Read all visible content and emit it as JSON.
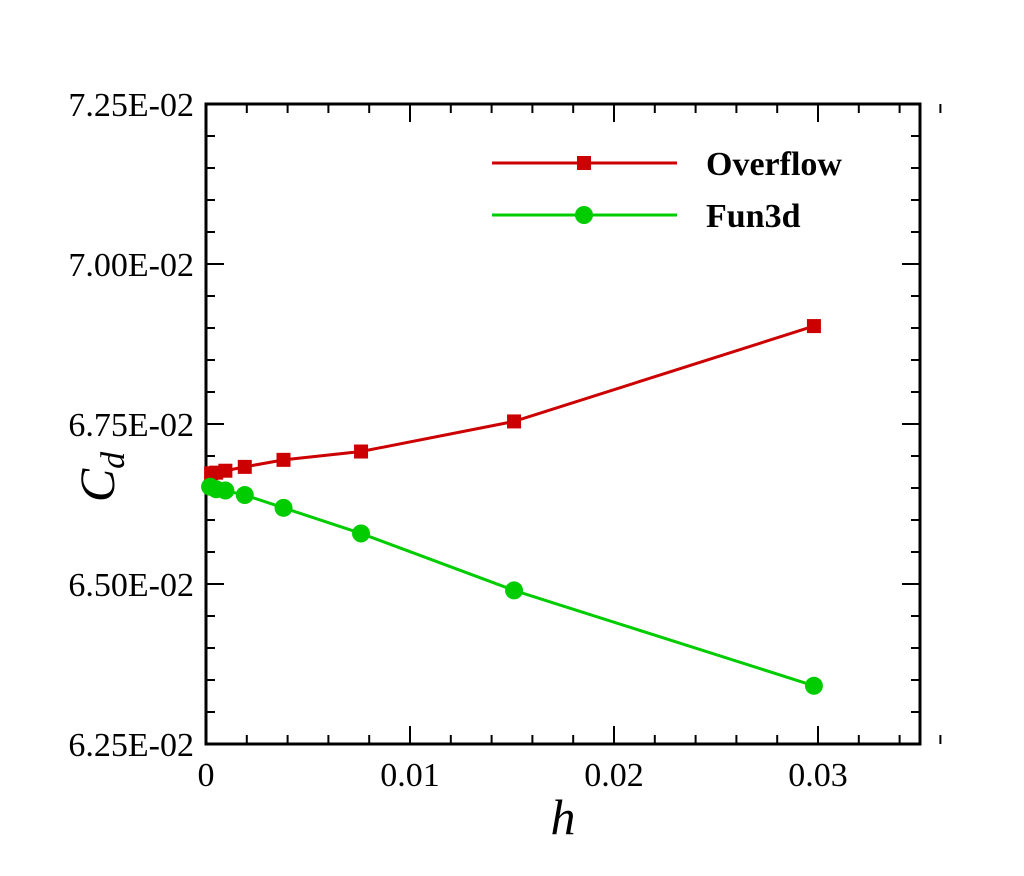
{
  "chart_data": {
    "type": "line",
    "xlabel": "h",
    "ylabel": "C",
    "ylabel_subscript": "d",
    "xlim": [
      0,
      0.035
    ],
    "ylim": [
      0.0625,
      0.0725
    ],
    "x_ticks": [
      {
        "value": 0,
        "label": "0"
      },
      {
        "value": 0.01,
        "label": "0.01"
      },
      {
        "value": 0.02,
        "label": "0.02"
      },
      {
        "value": 0.03,
        "label": "0.03"
      }
    ],
    "y_ticks": [
      {
        "value": 0.0625,
        "label": "6.25E-02"
      },
      {
        "value": 0.065,
        "label": "6.50E-02"
      },
      {
        "value": 0.0675,
        "label": "6.75E-02"
      },
      {
        "value": 0.07,
        "label": "7.00E-02"
      },
      {
        "value": 0.0725,
        "label": "7.25E-02"
      }
    ],
    "grid": false,
    "legend_position": "top-right",
    "series": [
      {
        "name": "Overflow",
        "color": "#cc0000",
        "marker": "square",
        "x": [
          0.00025,
          0.0005,
          0.00095,
          0.0019,
          0.0038,
          0.0076,
          0.0151,
          0.0298
        ],
        "y": [
          0.06673,
          0.06674,
          0.06677,
          0.06683,
          0.06694,
          0.06707,
          0.06754,
          0.06903
        ]
      },
      {
        "name": "Fun3d",
        "color": "#00cc00",
        "marker": "circle",
        "x": [
          0.0002,
          0.0005,
          0.00095,
          0.0019,
          0.0038,
          0.0076,
          0.0151,
          0.0298
        ],
        "y": [
          0.06652,
          0.06648,
          0.06646,
          0.06639,
          0.06619,
          0.06579,
          0.0649,
          0.06341
        ]
      }
    ]
  }
}
